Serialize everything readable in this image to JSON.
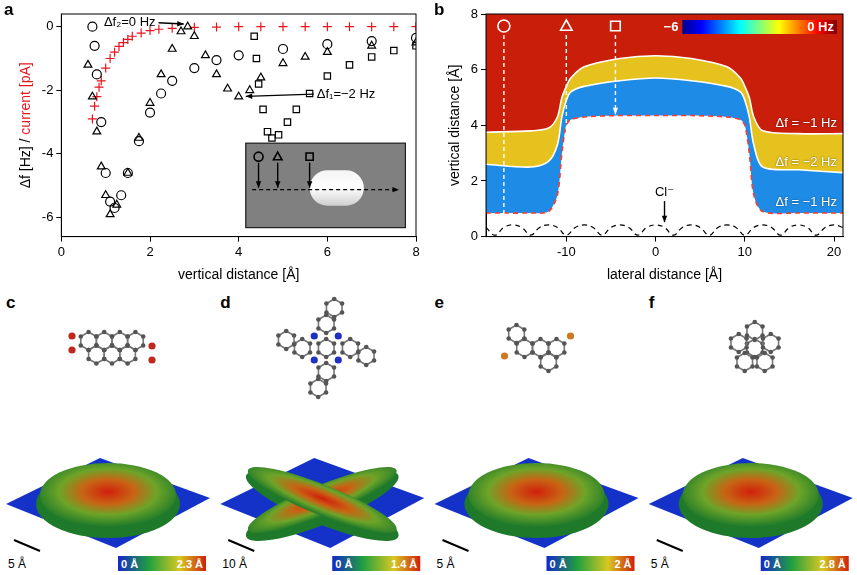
{
  "chart_data": [
    {
      "panel": "a",
      "type": "scatter",
      "xlabel": "vertical distance [Å]",
      "ylabel_parts": [
        {
          "text": "Δf [Hz] / ",
          "color": "#000000"
        },
        {
          "text": "current [pA]",
          "color": "#e8141e"
        }
      ],
      "xlim": [
        0,
        8
      ],
      "xticks": [
        0,
        2,
        4,
        6,
        8
      ],
      "ylim": [
        -6.6,
        0.4
      ],
      "yticks": [
        -6,
        -4,
        -2,
        0
      ],
      "y2lim": [
        -6.6,
        0.4
      ],
      "grid": false,
      "series": [
        {
          "marker": "circle",
          "color": "#000000",
          "x": [
            0.7,
            0.75,
            0.8,
            0.9,
            1.0,
            1.1,
            1.2,
            1.35,
            1.5,
            1.75,
            2.0,
            2.25,
            2.5,
            3.0,
            3.5,
            4.0,
            5.0,
            6.0,
            7.0,
            8.0
          ],
          "values": [
            0,
            -0.6,
            -1.5,
            -3.0,
            -4.6,
            -5.5,
            -5.7,
            -5.3,
            -4.6,
            -3.6,
            -2.7,
            -2.1,
            -1.7,
            -1.3,
            -1.05,
            -0.9,
            -0.7,
            -0.55,
            -0.45,
            -0.35
          ]
        },
        {
          "marker": "triangle",
          "color": "#000000",
          "x": [
            0.6,
            0.7,
            0.8,
            0.9,
            1.0,
            1.1,
            1.25,
            1.5,
            1.75,
            2.0,
            2.25,
            2.5,
            2.7,
            2.85,
            3.0,
            3.25,
            3.5,
            3.75,
            4.0,
            4.25,
            4.5,
            5.0,
            5.5,
            6.0,
            7.0,
            8.0
          ],
          "values": [
            -1.2,
            -2.2,
            -3.3,
            -4.4,
            -5.3,
            -5.9,
            -5.6,
            -4.6,
            -3.5,
            -2.4,
            -1.5,
            -0.7,
            -0.15,
            0,
            -0.3,
            -0.9,
            -1.5,
            -1.95,
            -2.2,
            -2.0,
            -1.6,
            -1.15,
            -0.95,
            -0.8,
            -0.6,
            -0.5
          ]
        },
        {
          "marker": "square",
          "color": "#000000",
          "x": [
            4.35,
            4.4,
            4.45,
            4.55,
            4.65,
            4.75,
            4.9,
            5.1,
            5.3,
            5.6,
            6.0,
            6.5,
            7.0,
            7.5,
            8.0
          ],
          "values": [
            -0.3,
            -1.0,
            -1.8,
            -2.6,
            -3.3,
            -3.5,
            -3.4,
            -3.0,
            -2.6,
            -2.1,
            -1.55,
            -1.2,
            -0.95,
            -0.75,
            -0.6
          ]
        },
        {
          "marker": "cross",
          "color": "#e8141e",
          "axis": "y2",
          "x": [
            0.7,
            0.75,
            0.8,
            0.85,
            0.9,
            1.0,
            1.1,
            1.2,
            1.3,
            1.4,
            1.5,
            1.6,
            1.8,
            2.0,
            2.2,
            2.5,
            3.0,
            3.5,
            4.0,
            4.5,
            5.0,
            5.5,
            6.0,
            6.5,
            7.0,
            7.5,
            8.0
          ],
          "values": [
            -2.9,
            -2.5,
            -2.2,
            -1.9,
            -1.7,
            -1.3,
            -1.0,
            -0.8,
            -0.62,
            -0.5,
            -0.4,
            -0.3,
            -0.2,
            -0.12,
            -0.08,
            -0.05,
            -0.02,
            -0.01,
            0,
            0,
            0,
            0,
            0,
            0,
            0,
            0,
            0
          ]
        }
      ],
      "annotations": [
        {
          "text": "Δf₂=0 Hz"
        },
        {
          "text": "Δf₁=−2 Hz"
        }
      ],
      "inset_markers": [
        "circle",
        "triangle",
        "square"
      ]
    },
    {
      "panel": "b",
      "type": "contour",
      "xlabel": "lateral distance [Å]",
      "ylabel": "vertical distance [Å]",
      "xlim": [
        -19,
        21
      ],
      "xticks": [
        -10,
        0,
        10,
        20
      ],
      "ylim": [
        0,
        8
      ],
      "yticks": [
        0,
        2,
        4,
        6,
        8
      ],
      "grid": false,
      "x": [
        -19,
        -14,
        -12,
        -11,
        -10.5,
        -10,
        -9.5,
        -8,
        -4,
        0,
        4,
        8,
        9.5,
        10,
        10.5,
        11,
        12,
        16,
        21
      ],
      "series": [
        {
          "name": "Δf = −1 Hz",
          "type": "area",
          "color": "#c81e0a",
          "values": [
            3.75,
            3.8,
            3.9,
            4.3,
            5.0,
            5.4,
            5.7,
            6.1,
            6.4,
            6.5,
            6.4,
            6.1,
            5.7,
            5.4,
            5.0,
            4.3,
            3.8,
            3.7,
            3.7
          ]
        },
        {
          "name": "Δf = −2 Hz",
          "type": "area",
          "color": "#e6c21e",
          "values": [
            2.6,
            2.5,
            2.7,
            3.3,
            4.3,
            4.9,
            5.2,
            5.4,
            5.6,
            5.7,
            5.6,
            5.4,
            5.2,
            4.9,
            4.3,
            3.3,
            2.5,
            2.4,
            2.3
          ]
        },
        {
          "name": "Δf = −1 Hz",
          "type": "area",
          "color": "#1e8ce6",
          "line_style": "dashed",
          "values": [
            0.85,
            0.85,
            0.9,
            1.5,
            3.0,
            4.0,
            4.2,
            4.3,
            4.35,
            4.35,
            4.35,
            4.3,
            4.2,
            4.0,
            3.0,
            1.5,
            0.9,
            0.85,
            0.85
          ]
        },
        {
          "type": "line",
          "color": "#000000",
          "line_style": "dashed",
          "x": [
            -19,
            -18,
            -17,
            -16,
            -15,
            -14,
            -13,
            -12,
            -11,
            -10,
            -9,
            -8,
            -7,
            -6,
            -5,
            -4,
            -3,
            -2,
            -1,
            0,
            1,
            2,
            3,
            4,
            5,
            6,
            7,
            8,
            9,
            10,
            11,
            12,
            13,
            14,
            15,
            16,
            17,
            18,
            19,
            20,
            21
          ],
          "values": [
            0.33,
            0.05,
            0.33,
            0.42,
            0.33,
            0.05,
            0.33,
            0.42,
            0.33,
            0.05,
            0.33,
            0.42,
            0.33,
            0.05,
            0.33,
            0.42,
            0.33,
            0.05,
            0.33,
            0.42,
            0.33,
            0.05,
            0.33,
            0.42,
            0.33,
            0.05,
            0.33,
            0.42,
            0.33,
            0.05,
            0.33,
            0.42,
            0.33,
            0.05,
            0.33,
            0.42,
            0.33,
            0.05,
            0.33,
            0.42,
            0.33
          ]
        }
      ],
      "markers": [
        {
          "marker": "circle",
          "x": -17,
          "y_end": 0.5
        },
        {
          "marker": "triangle",
          "x": -10,
          "y_end": 0.55
        },
        {
          "marker": "square",
          "x": -4.5,
          "y_end": 4.4
        }
      ],
      "annotations": [
        {
          "text": "Cl⁻"
        }
      ],
      "colorbar": {
        "range": [
          -6,
          0
        ],
        "ticks": [
          {
            "value": -6,
            "label": "−6"
          },
          {
            "value": 0,
            "label": "0 Hz"
          }
        ]
      }
    }
  ],
  "images": [
    {
      "panel": "c",
      "scale_bar": "5 Å",
      "height_colorbar": {
        "range": [
          0,
          2.3
        ],
        "ticks": [
          {
            "value": 0,
            "label": "0 Å"
          },
          {
            "value": 2.3,
            "label": "2.3 Å"
          }
        ]
      }
    },
    {
      "panel": "d",
      "scale_bar": "10 Å",
      "height_colorbar": {
        "range": [
          0,
          1.4
        ],
        "ticks": [
          {
            "value": 0,
            "label": "0 Å"
          },
          {
            "value": 1.4,
            "label": "1.4 Å"
          }
        ]
      }
    },
    {
      "panel": "e",
      "scale_bar": "5 Å",
      "height_colorbar": {
        "range": [
          0,
          2
        ],
        "ticks": [
          {
            "value": 0,
            "label": "0 Å"
          },
          {
            "value": 2,
            "label": "2 Å"
          }
        ]
      }
    },
    {
      "panel": "f",
      "scale_bar": "5 Å",
      "height_colorbar": {
        "range": [
          0,
          2.8
        ],
        "ticks": [
          {
            "value": 0,
            "label": "0 Å"
          },
          {
            "value": 2.8,
            "label": "2.8 Å"
          }
        ]
      }
    }
  ]
}
